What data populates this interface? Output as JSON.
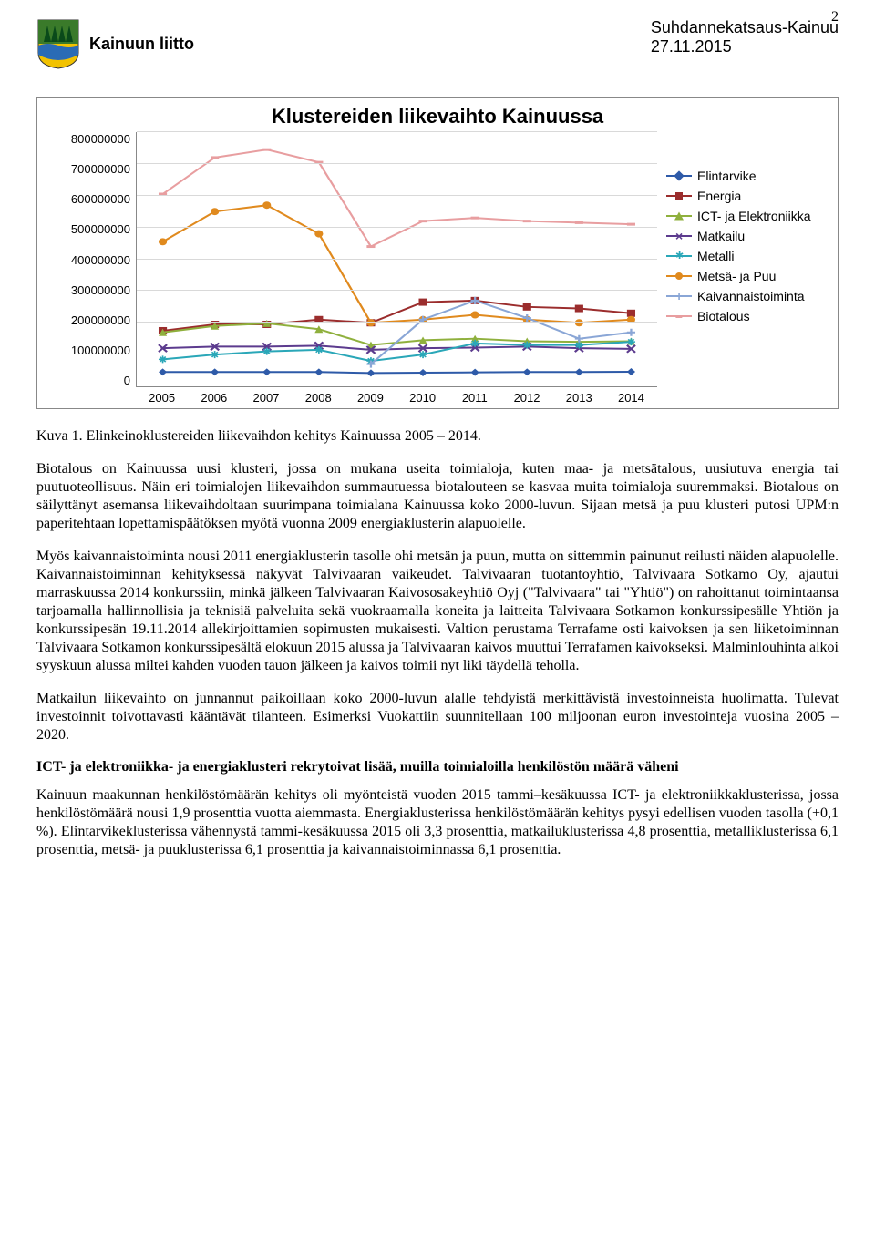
{
  "header": {
    "org": "Kainuun liitto",
    "doc_title": "Suhdannekatsaus-Kainuu",
    "date": "27.11.2015",
    "page_number": "2",
    "logo": {
      "shield_fill": "#f2c200",
      "tree_fill": "#0a6b2f",
      "water_fill": "#2a6bb5"
    }
  },
  "chart": {
    "type": "line",
    "title": "Klustereiden liikevaihto Kainuussa",
    "x_categories": [
      "2005",
      "2006",
      "2007",
      "2008",
      "2009",
      "2010",
      "2011",
      "2012",
      "2013",
      "2014"
    ],
    "ylim": [
      0,
      800000000
    ],
    "ytick_step": 100000000,
    "y_labels": [
      "0",
      "100000000",
      "200000000",
      "300000000",
      "400000000",
      "500000000",
      "600000000",
      "700000000",
      "800000000"
    ],
    "plot_bg": "#ffffff",
    "grid_color": "#d9d9d9",
    "border_color": "#888888",
    "label_fontsize": 13,
    "title_fontsize": 22,
    "legend_fontsize": 14,
    "series": [
      {
        "name": "Elintarvike",
        "color": "#2e5aa8",
        "marker": "diamond",
        "values": [
          45000000,
          45000000,
          45000000,
          45000000,
          42000000,
          43000000,
          44000000,
          45000000,
          45000000,
          46000000
        ]
      },
      {
        "name": "Energia",
        "color": "#9b2d2d",
        "marker": "square",
        "values": [
          175000000,
          195000000,
          195000000,
          210000000,
          200000000,
          265000000,
          270000000,
          250000000,
          245000000,
          230000000
        ]
      },
      {
        "name": "ICT- ja Elektroniikka",
        "color": "#8fb03d",
        "marker": "triangle",
        "values": [
          170000000,
          190000000,
          198000000,
          180000000,
          130000000,
          145000000,
          150000000,
          142000000,
          140000000,
          142000000
        ]
      },
      {
        "name": "Matkailu",
        "color": "#5c3b8e",
        "marker": "x",
        "values": [
          120000000,
          125000000,
          125000000,
          128000000,
          115000000,
          120000000,
          122000000,
          125000000,
          120000000,
          118000000
        ]
      },
      {
        "name": "Metalli",
        "color": "#2aa7b8",
        "marker": "asterisk",
        "values": [
          85000000,
          100000000,
          110000000,
          115000000,
          80000000,
          100000000,
          135000000,
          130000000,
          130000000,
          140000000
        ]
      },
      {
        "name": "Metsä- ja Puu",
        "color": "#e08a1e",
        "marker": "circle",
        "values": [
          455000000,
          550000000,
          570000000,
          480000000,
          200000000,
          210000000,
          225000000,
          210000000,
          200000000,
          210000000
        ]
      },
      {
        "name": "Kaivannaistoiminta",
        "color": "#8aa6d6",
        "marker": "plus",
        "values": [
          null,
          null,
          null,
          null,
          70000000,
          210000000,
          270000000,
          215000000,
          150000000,
          170000000
        ]
      },
      {
        "name": "Biotalous",
        "color": "#e89ea0",
        "marker": "dash",
        "values": [
          605000000,
          720000000,
          745000000,
          705000000,
          440000000,
          520000000,
          530000000,
          520000000,
          515000000,
          510000000
        ]
      }
    ]
  },
  "body": {
    "caption": "Kuva 1. Elinkeinoklustereiden liikevaihdon kehitys Kainuussa 2005 – 2014.",
    "p1": "Biotalous on Kainuussa uusi klusteri, jossa on mukana useita toimialoja, kuten maa- ja metsätalous, uusiutuva energia tai puutuoteollisuus. Näin eri toimialojen liikevaihdon summautuessa biotalouteen se kasvaa muita toimialoja suuremmaksi. Biotalous on säilyttänyt asemansa liikevaihdoltaan suurimpana toimialana Kainuussa koko 2000-luvun. Sijaan metsä ja puu klusteri putosi UPM:n paperitehtaan lopettamispäätöksen myötä vuonna 2009 energiaklusterin alapuolelle.",
    "p2": "Myös kaivannaistoiminta nousi 2011 energiaklusterin tasolle ohi metsän ja puun, mutta on sittemmin painunut reilusti näiden alapuolelle. Kaivannaistoiminnan kehityksessä näkyvät Talvivaaran vaikeudet. Talvivaaran tuotantoyhtiö, Talvivaara Sotkamo Oy, ajautui marraskuussa 2014 konkurssiin, minkä jälkeen Talvivaaran Kaivososakeyhtiö Oyj (\"Talvivaara\" tai \"Yhtiö\") on rahoittanut toimintaansa tarjoamalla hallinnollisia ja teknisiä palveluita sekä vuokraamalla koneita ja laitteita Talvivaara Sotkamon konkurssipesälle Yhtiön ja konkurssipesän 19.11.2014 allekirjoittamien sopimusten mukaisesti. Valtion perustama Terrafame osti kaivoksen ja sen liiketoiminnan Talvivaara Sotkamon konkurssipesältä elokuun 2015 alussa ja Talvivaaran kaivos muuttui Terrafamen kaivokseksi. Malminlouhinta alkoi syyskuun alussa miltei kahden vuoden tauon jälkeen ja kaivos toimii nyt liki täydellä teholla.",
    "p3": "Matkailun liikevaihto on junnannut paikoillaan koko 2000-luvun alalle tehdyistä merkittävistä investoinneista huolimatta. Tulevat investoinnit toivottavasti kääntävät tilanteen. Esimerksi Vuokattiin suunnitellaan 100 miljoonan euron investointeja vuosina 2005 – 2020.",
    "h3": "ICT- ja elektroniikka- ja energiaklusteri rekrytoivat lisää, muilla toimialoilla henkilöstön määrä väheni",
    "p4": "Kainuun maakunnan henkilöstömäärän kehitys oli myönteistä vuoden 2015 tammi–kesäkuussa ICT- ja elektroniikkaklusterissa, jossa henkilöstömäärä nousi 1,9 prosenttia vuotta aiemmasta. Energiaklusterissa henkilöstömäärän kehitys pysyi edellisen vuoden tasolla (+0,1 %). Elintarvikeklusterissa vähennystä tammi-kesäkuussa 2015 oli 3,3 prosenttia, matkailuklusterissa 4,8 prosenttia, metalliklusterissa 6,1 prosenttia, metsä- ja puuklusterissa 6,1 prosenttia ja kaivannaistoiminnassa 6,1 prosenttia."
  }
}
